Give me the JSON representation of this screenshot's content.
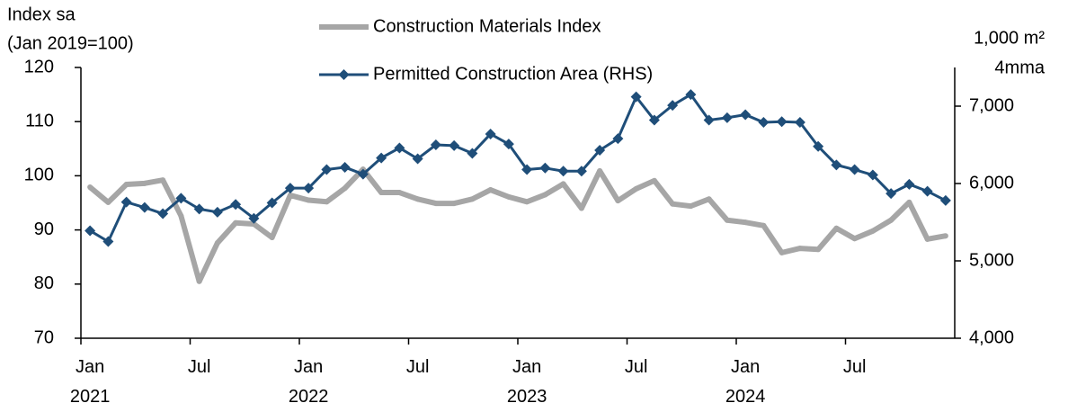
{
  "chart_data": {
    "type": "line",
    "y_label_lines": [
      "Index sa",
      "(Jan 2019=100)"
    ],
    "y2_label_lines": [
      "1,000 m²",
      "4mma"
    ],
    "legend": "top-center",
    "categories": [
      "Jan\n2021",
      null,
      null,
      null,
      null,
      null,
      "Jul",
      null,
      null,
      null,
      null,
      null,
      "Jan\n2022",
      null,
      null,
      null,
      null,
      null,
      "Jul",
      null,
      null,
      null,
      null,
      null,
      "Jan\n2023",
      null,
      null,
      null,
      null,
      null,
      "Jul",
      null,
      null,
      null,
      null,
      null,
      "Jan\n2024",
      null,
      null,
      null,
      null,
      null,
      "Jul",
      null,
      null,
      null,
      null,
      null
    ],
    "ylim": [
      70,
      120
    ],
    "yticks": [
      70,
      80,
      90,
      100,
      110,
      120
    ],
    "y2lim": [
      4000,
      7500
    ],
    "y2ticks": [
      {
        "value": 4000,
        "label": "4,000"
      },
      {
        "value": 5000,
        "label": "5,000"
      },
      {
        "value": 6000,
        "label": "6,000"
      },
      {
        "value": 7000,
        "label": "7,000"
      }
    ],
    "series": [
      {
        "name": "Construction Materials Index",
        "color": "#a6a6a6",
        "axis": "y",
        "values": [
          97.9,
          95.1,
          98.4,
          98.6,
          99.2,
          92.6,
          80.5,
          87.6,
          91.3,
          91.1,
          88.6,
          96.4,
          95.5,
          95.2,
          97.7,
          101.2,
          96.9,
          96.9,
          95.7,
          94.9,
          94.9,
          95.7,
          97.4,
          96.1,
          95.2,
          96.5,
          98.5,
          94.0,
          100.9,
          95.4,
          97.6,
          99.1,
          94.8,
          94.4,
          95.7,
          91.8,
          91.4,
          90.8,
          85.8,
          86.6,
          86.4,
          90.3,
          88.4,
          89.8,
          91.8,
          95.1,
          88.3,
          88.9
        ]
      },
      {
        "name": "Permitted Construction Area (RHS)",
        "color": "#1f4e79",
        "axis": "y2",
        "values": [
          5390,
          5250,
          5760,
          5690,
          5610,
          5810,
          5670,
          5630,
          5730,
          5550,
          5750,
          5940,
          5940,
          6180,
          6210,
          6120,
          6330,
          6460,
          6320,
          6500,
          6490,
          6390,
          6640,
          6510,
          6180,
          6200,
          6160,
          6160,
          6430,
          6580,
          7120,
          6820,
          7010,
          7150,
          6820,
          6850,
          6890,
          6790,
          6800,
          6790,
          6480,
          6240,
          6180,
          6110,
          5870,
          5990,
          5900,
          5780
        ]
      }
    ]
  }
}
